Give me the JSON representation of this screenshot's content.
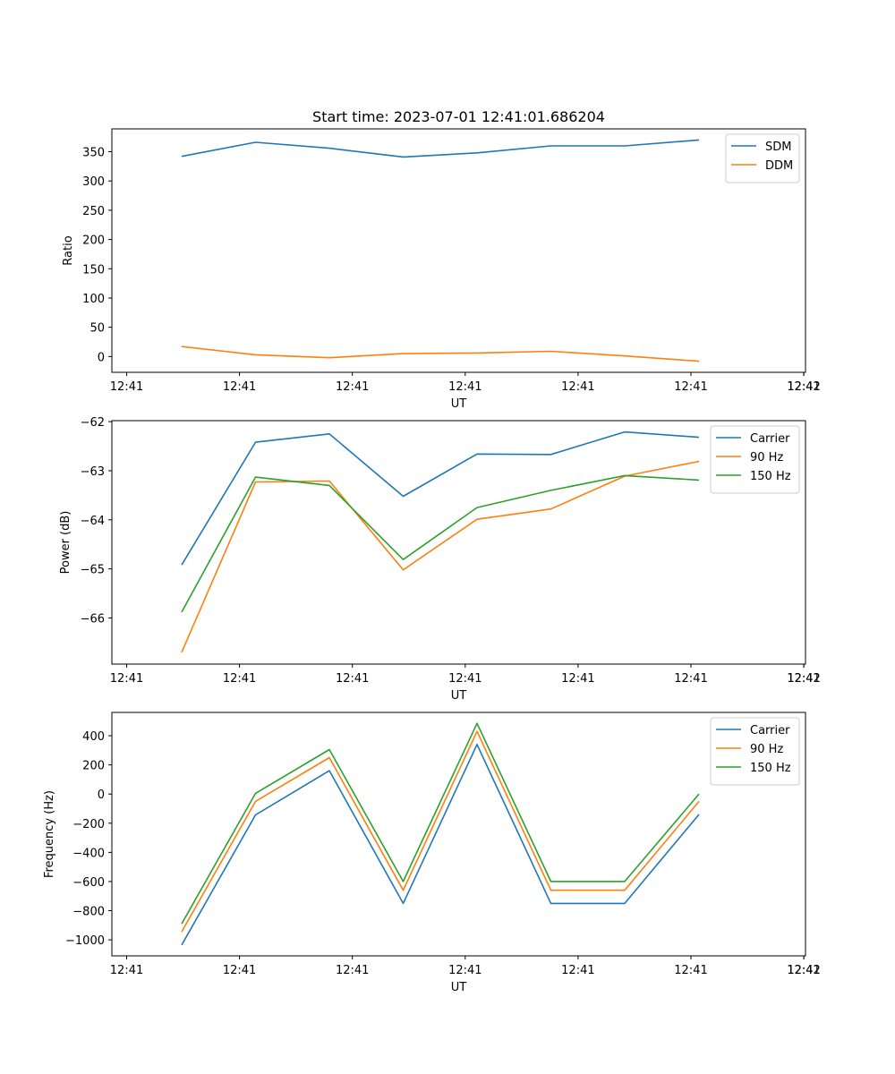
{
  "chart_data": [
    {
      "type": "line",
      "title": "Start time: 2023-07-01 12:41:01.686204",
      "xlabel": "UT",
      "ylabel": "Ratio",
      "x_tick_labels": [
        "12:41",
        "12:41",
        "12:41",
        "12:41",
        "12:41",
        "12:41",
        "12:41",
        "12:42"
      ],
      "y_ticks": [
        0,
        50,
        100,
        150,
        200,
        250,
        300,
        350
      ],
      "ylim": [
        -27,
        389
      ],
      "series": [
        {
          "name": "SDM",
          "color": "#1f77b4",
          "values": [
            342,
            366,
            356,
            341,
            348,
            360,
            360,
            370
          ]
        },
        {
          "name": "DDM",
          "color": "#ff7f0e",
          "values": [
            17,
            3,
            -2,
            5,
            6,
            9,
            1,
            -8
          ]
        }
      ],
      "legend": "top-right",
      "grid": false
    },
    {
      "type": "line",
      "title": "",
      "xlabel": "UT",
      "ylabel": "Power (dB)",
      "x_tick_labels": [
        "12:41",
        "12:41",
        "12:41",
        "12:41",
        "12:41",
        "12:41",
        "12:41",
        "12:42"
      ],
      "y_ticks": [
        -66,
        -65,
        -64,
        -63,
        -62
      ],
      "y_tick_labels": [
        "−66",
        "−65",
        "−64",
        "−63",
        "−62"
      ],
      "ylim": [
        -66.94,
        -61.98
      ],
      "series": [
        {
          "name": "Carrier",
          "color": "#1f77b4",
          "values": [
            -64.92,
            -62.42,
            -62.25,
            -63.52,
            -62.66,
            -62.67,
            -62.21,
            -62.32
          ]
        },
        {
          "name": "90 Hz",
          "color": "#ff7f0e",
          "values": [
            -66.7,
            -63.23,
            -63.21,
            -65.02,
            -63.99,
            -63.78,
            -63.11,
            -62.81
          ]
        },
        {
          "name": "150 Hz",
          "color": "#2ca02c",
          "values": [
            -65.88,
            -63.13,
            -63.3,
            -64.81,
            -63.75,
            -63.4,
            -63.1,
            -63.19
          ]
        }
      ],
      "legend": "top-right",
      "grid": false
    },
    {
      "type": "line",
      "title": "",
      "xlabel": "UT",
      "ylabel": "Frequency (Hz)",
      "x_tick_labels": [
        "12:41",
        "12:41",
        "12:41",
        "12:41",
        "12:41",
        "12:41",
        "12:41",
        "12:42"
      ],
      "y_ticks": [
        -1000,
        -800,
        -600,
        -400,
        -200,
        0,
        200,
        400
      ],
      "y_tick_labels": [
        "−1000",
        "−800",
        "−600",
        "−400",
        "−200",
        "0",
        "200",
        "400"
      ],
      "ylim": [
        -1110,
        560
      ],
      "series": [
        {
          "name": "Carrier",
          "color": "#1f77b4",
          "values": [
            -1035,
            -143,
            160,
            -750,
            340,
            -750,
            -750,
            -140
          ]
        },
        {
          "name": "90 Hz",
          "color": "#ff7f0e",
          "values": [
            -945,
            -50,
            250,
            -660,
            430,
            -660,
            -660,
            -50
          ]
        },
        {
          "name": "150 Hz",
          "color": "#2ca02c",
          "values": [
            -890,
            5,
            305,
            -600,
            485,
            -600,
            -600,
            0
          ]
        }
      ],
      "legend": "top-right",
      "grid": false
    }
  ]
}
